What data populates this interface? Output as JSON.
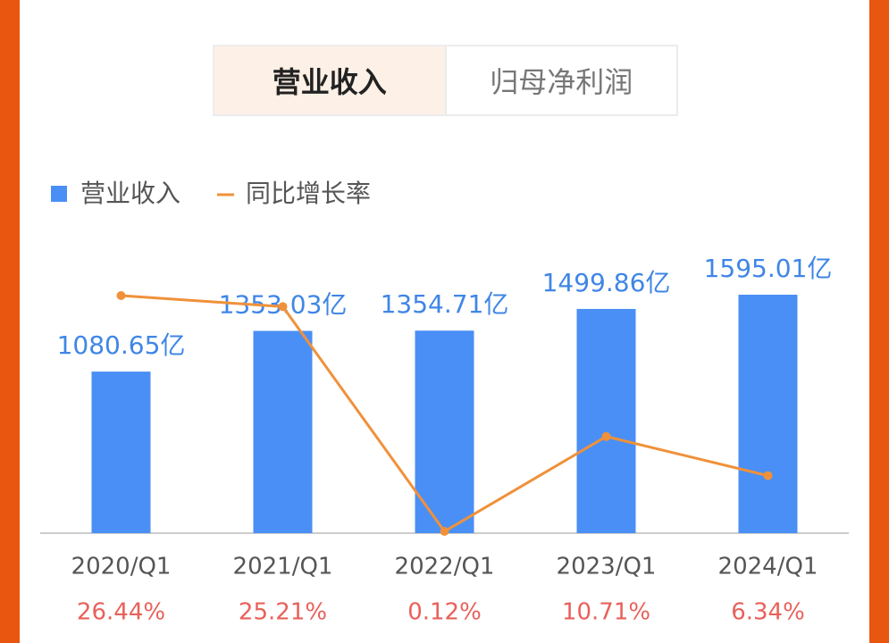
{
  "tabs": [
    "营业收入",
    "归母净利润"
  ],
  "chart_data": {
    "type": "bar-line",
    "categories": [
      "2020/Q1",
      "2021/Q1",
      "2022/Q1",
      "2023/Q1",
      "2024/Q1"
    ],
    "series": [
      {
        "name": "营业收入",
        "type": "bar",
        "color": "#4a8ff5",
        "values": [
          1080.65,
          1353.03,
          1354.71,
          1499.86,
          1595.01
        ],
        "value_labels": [
          "1080.65亿",
          "1353.03亿",
          "1354.71亿",
          "1499.86亿",
          "1595.01亿"
        ]
      },
      {
        "name": "同比增长率",
        "type": "line",
        "color": "#f0913a",
        "values": [
          26.44,
          25.21,
          0.12,
          10.71,
          6.34
        ],
        "value_labels": [
          "26.44%",
          "25.21%",
          "0.12%",
          "10.71%",
          "6.34%"
        ]
      }
    ]
  }
}
